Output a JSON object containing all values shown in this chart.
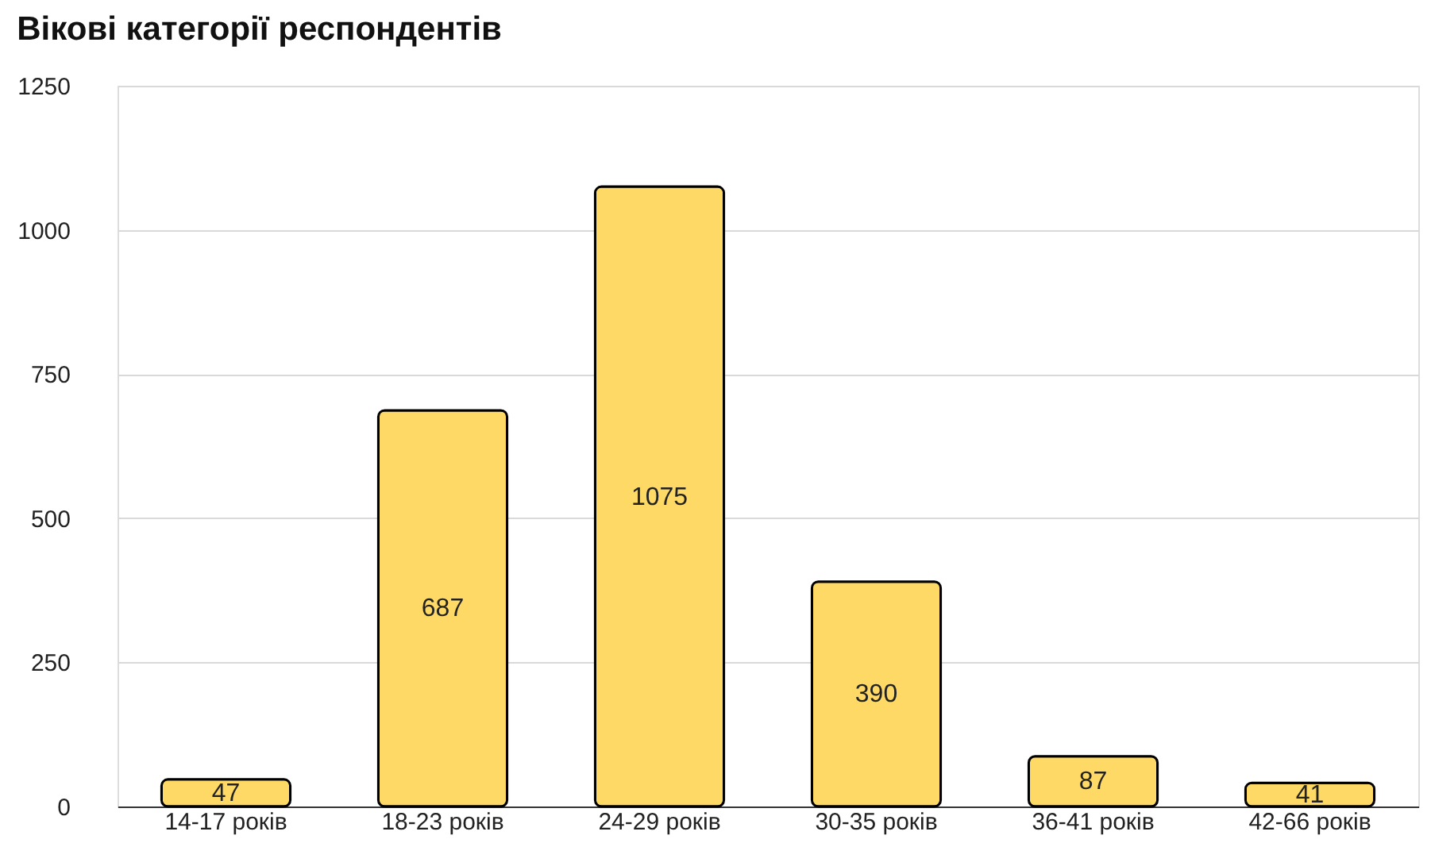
{
  "chart_data": {
    "type": "bar",
    "title": "Вікові категорії респондентів",
    "categories": [
      "14-17 років",
      "18-23 років",
      "24-29 років",
      "30-35 років",
      "36-41 років",
      "42-66 років"
    ],
    "values": [
      47,
      687,
      1075,
      390,
      87,
      41
    ],
    "color": "#ffd966",
    "ylim": [
      0,
      1250
    ],
    "yticks": [
      0,
      250,
      500,
      750,
      1000,
      1250
    ],
    "grid": "y",
    "data_labels": true
  }
}
